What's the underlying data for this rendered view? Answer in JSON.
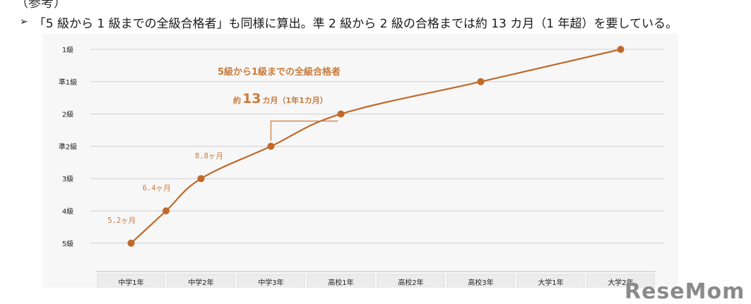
{
  "header": {
    "top_cut_text": "（参考）",
    "arrow_glyph": "➢",
    "text": "「5 級から 1 級までの全級合格者」も同様に算出。準 2 級から 2 級の合格までは約 13 カ月（1 年超）を要している。"
  },
  "watermark": "ReseMom",
  "colors": {
    "line": "#c0692a",
    "text_accent": "#c97b3c",
    "grid": "#cfcfcf"
  },
  "chart_data": {
    "type": "line",
    "title": "5級から1級までの全級合格者",
    "categories": [
      "中学1年",
      "中学2年",
      "中学3年",
      "高校1年",
      "高校2年",
      "高校3年",
      "大学1年",
      "大学2年"
    ],
    "y_levels": [
      "5級",
      "4級",
      "3級",
      "準2級",
      "2級",
      "準1級",
      "1級"
    ],
    "series": [
      {
        "points": [
          {
            "x": "中学1年",
            "y": "5級"
          },
          {
            "x": "中学1年〜中学2年",
            "y": "4級"
          },
          {
            "x": "中学2年",
            "y": "3級"
          },
          {
            "x": "中学3年",
            "y": "準2級"
          },
          {
            "x": "高校1年",
            "y": "2級"
          },
          {
            "x": "高校3年",
            "y": "準1級"
          },
          {
            "x": "大学2年",
            "y": "1級"
          }
        ]
      }
    ],
    "annotations": [
      {
        "between": [
          "5級",
          "4級"
        ],
        "text": "5.2ヶ月"
      },
      {
        "between": [
          "4級",
          "3級"
        ],
        "text": "6.4ヶ月"
      },
      {
        "between": [
          "3級",
          "準2級"
        ],
        "text": "8.8ヶ月"
      }
    ],
    "callout": {
      "prefix": "約",
      "number": "13",
      "suffix": "カ月（1年1カ月）",
      "between": [
        "準2級",
        "2級"
      ]
    },
    "grid": true
  }
}
